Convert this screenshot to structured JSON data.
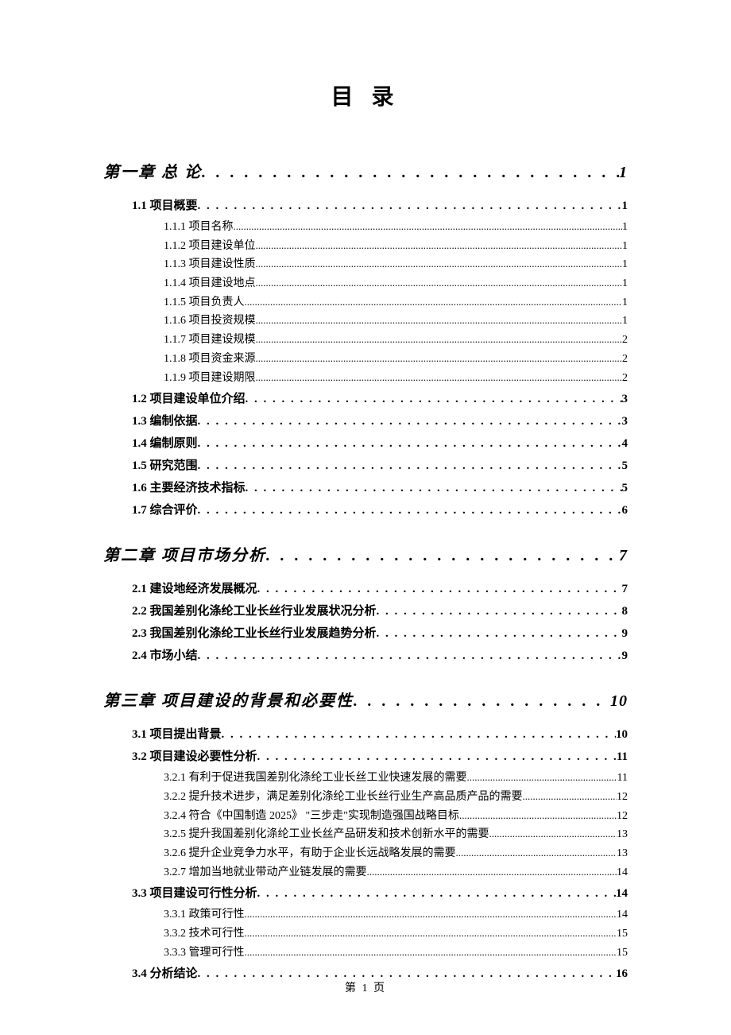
{
  "title": "目 录",
  "footer": "第 1 页",
  "toc": [
    {
      "level": 1,
      "label": "第一章 总 论",
      "page": "1"
    },
    {
      "level": 2,
      "label": "1.1 项目概要",
      "page": "1"
    },
    {
      "level": 3,
      "label": "1.1.1 项目名称",
      "page": "1"
    },
    {
      "level": 3,
      "label": "1.1.2 项目建设单位",
      "page": "1"
    },
    {
      "level": 3,
      "label": "1.1.3 项目建设性质",
      "page": "1"
    },
    {
      "level": 3,
      "label": "1.1.4 项目建设地点",
      "page": "1"
    },
    {
      "level": 3,
      "label": "1.1.5 项目负责人",
      "page": "1"
    },
    {
      "level": 3,
      "label": "1.1.6 项目投资规模",
      "page": "1"
    },
    {
      "level": 3,
      "label": "1.1.7 项目建设规模",
      "page": "2"
    },
    {
      "level": 3,
      "label": "1.1.8 项目资金来源",
      "page": "2"
    },
    {
      "level": 3,
      "label": "1.1.9 项目建设期限",
      "page": "2"
    },
    {
      "level": 2,
      "label": "1.2 项目建设单位介绍",
      "page": "3"
    },
    {
      "level": 2,
      "label": "1.3 编制依据",
      "page": "3"
    },
    {
      "level": 2,
      "label": "1.4 编制原则",
      "page": "4"
    },
    {
      "level": 2,
      "label": "1.5 研究范围",
      "page": "5"
    },
    {
      "level": 2,
      "label": "1.6 主要经济技术指标",
      "page": "5"
    },
    {
      "level": 2,
      "label": "1.7 综合评价",
      "page": "6"
    },
    {
      "level": 1,
      "label": "第二章 项目市场分析",
      "page": "7"
    },
    {
      "level": 2,
      "label": "2.1 建设地经济发展概况",
      "page": "7"
    },
    {
      "level": 2,
      "label": "2.2 我国差别化涤纶工业长丝行业发展状况分析",
      "page": "8"
    },
    {
      "level": 2,
      "label": "2.3 我国差别化涤纶工业长丝行业发展趋势分析",
      "page": "9"
    },
    {
      "level": 2,
      "label": "2.4 市场小结",
      "page": "9"
    },
    {
      "level": 1,
      "label": "第三章 项目建设的背景和必要性",
      "page": "10"
    },
    {
      "level": 2,
      "label": "3.1 项目提出背景",
      "page": "10"
    },
    {
      "level": 2,
      "label": "3.2 项目建设必要性分析",
      "page": "11"
    },
    {
      "level": 3,
      "label": "3.2.1 有利于促进我国差别化涤纶工业长丝工业快速发展的需要",
      "page": "11"
    },
    {
      "level": 3,
      "label": "3.2.2 提升技术进步，满足差别化涤纶工业长丝行业生产高品质产品的需要",
      "page": "12"
    },
    {
      "level": 3,
      "label": "3.2.4 符合《中国制造 2025》 \"三步走\"实现制造强国战略目标",
      "page": "12"
    },
    {
      "level": 3,
      "label": "3.2.5 提升我国差别化涤纶工业长丝产品研发和技术创新水平的需要",
      "page": "13"
    },
    {
      "level": 3,
      "label": "3.2.6 提升企业竞争力水平，有助于企业长远战略发展的需要",
      "page": "13"
    },
    {
      "level": 3,
      "label": "3.2.7 增加当地就业带动产业链发展的需要",
      "page": "14"
    },
    {
      "level": 2,
      "label": "3.3 项目建设可行性分析",
      "page": "14"
    },
    {
      "level": 3,
      "label": "3.3.1 政策可行性",
      "page": "14"
    },
    {
      "level": 3,
      "label": "3.3.2 技术可行性",
      "page": "15"
    },
    {
      "level": 3,
      "label": "3.3.3 管理可行性",
      "page": "15"
    },
    {
      "level": 2,
      "label": "3.4 分析结论",
      "page": "16"
    }
  ]
}
